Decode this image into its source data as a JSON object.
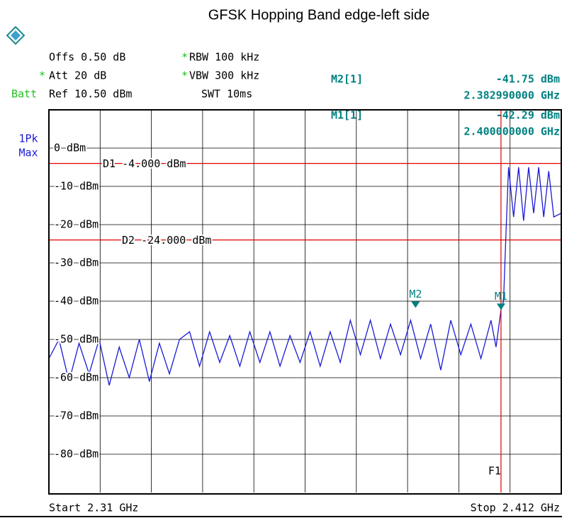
{
  "chart_data": {
    "type": "line",
    "title": "GFSK Hopping Band edge-left side",
    "header": {
      "offs": "Offs 0.50 dB",
      "att_flag": "*",
      "att": "Att 20 dB",
      "batt": "Batt",
      "ref": "Ref 10.50 dBm",
      "rbw_flag": "*",
      "rbw": "RBW 100 kHz",
      "vbw_flag": "*",
      "vbw": "VBW 300 kHz",
      "swt": "SWT 10ms",
      "detector": [
        "1Pk",
        "Max"
      ],
      "start": "Start 2.31 GHz",
      "stop": "Stop 2.412 GHz"
    },
    "xlim": [
      2.31,
      2.412
    ],
    "ylim": [
      -90,
      10
    ],
    "yticks": [
      {
        "value": 0,
        "label": "0 dBm"
      },
      {
        "value": -10,
        "label": "-10 dBm"
      },
      {
        "value": -20,
        "label": "-20 dBm"
      },
      {
        "value": -30,
        "label": "-30 dBm"
      },
      {
        "value": -40,
        "label": "-40 dBm"
      },
      {
        "value": -50,
        "label": "-50 dBm"
      },
      {
        "value": -60,
        "label": "-60 dBm"
      },
      {
        "value": -70,
        "label": "-70 dBm"
      },
      {
        "value": -80,
        "label": "-80 dBm"
      }
    ],
    "grid": true,
    "x": [
      2.31,
      2.312,
      2.314,
      2.316,
      2.318,
      2.32,
      2.322,
      2.324,
      2.326,
      2.328,
      2.33,
      2.332,
      2.334,
      2.336,
      2.338,
      2.34,
      2.342,
      2.344,
      2.346,
      2.348,
      2.35,
      2.352,
      2.354,
      2.356,
      2.358,
      2.36,
      2.362,
      2.364,
      2.366,
      2.368,
      2.37,
      2.372,
      2.374,
      2.376,
      2.378,
      2.38,
      2.382,
      2.384,
      2.386,
      2.388,
      2.39,
      2.392,
      2.394,
      2.396,
      2.398,
      2.399,
      2.4,
      2.4005,
      2.401,
      2.4015,
      2.4025,
      2.4035,
      2.4045,
      2.4055,
      2.4065,
      2.4075,
      2.4085,
      2.4095,
      2.4105,
      2.412
    ],
    "series": [
      {
        "name": "1Pk Max",
        "color": "#1a1ad6",
        "values": [
          -55,
          -50,
          -61,
          -51,
          -59,
          -50,
          -62,
          -52,
          -60,
          -50,
          -61,
          -51,
          -59,
          -50,
          -48,
          -57,
          -48,
          -56,
          -49,
          -57,
          -48,
          -56,
          -48,
          -57,
          -49,
          -56,
          -48,
          -57,
          -48,
          -56,
          -45,
          -54,
          -45,
          -55,
          -46,
          -54,
          -45,
          -55,
          -46,
          -58,
          -45,
          -54,
          -46,
          -55,
          -45,
          -52,
          -42.3,
          -40,
          -22,
          -5,
          -18,
          -5,
          -19,
          -5,
          -17,
          -5,
          -18,
          -6,
          -18,
          -17
        ]
      }
    ],
    "display_lines": [
      {
        "label": "D1 -4.000 dBm",
        "value": -4,
        "color": "#e00000"
      },
      {
        "label": "D2 -24.000 dBm",
        "value": -24,
        "color": "#e00000"
      }
    ],
    "frequency_lines": [
      {
        "label": "F1",
        "value": 2.4,
        "color": "#e00000"
      }
    ],
    "markers": [
      {
        "name": "M2",
        "readout": "M2[1]",
        "x": 2.38299,
        "y": -41.75,
        "x_label": "2.382990000 GHz",
        "y_label": "-41.75 dBm",
        "color": "#008080"
      },
      {
        "name": "M1",
        "readout": "M1[1]",
        "x": 2.4,
        "y": -42.29,
        "x_label": "2.400000000 GHz",
        "y_label": "-42.29 dBm",
        "color": "#008080"
      }
    ]
  }
}
